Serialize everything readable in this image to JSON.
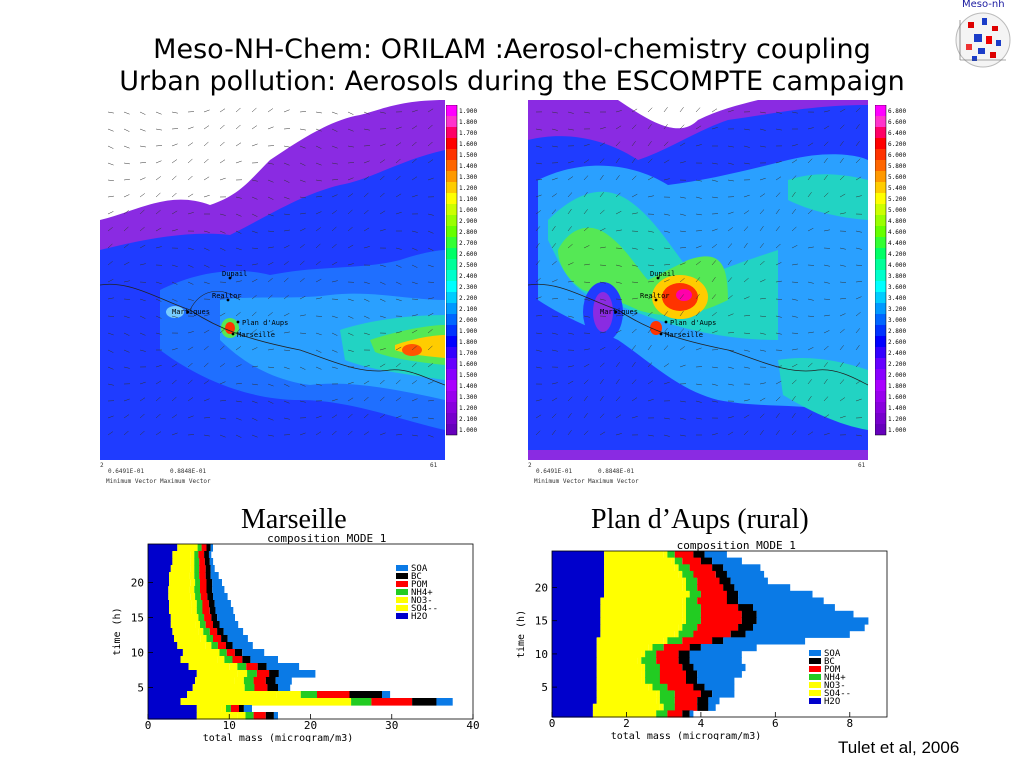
{
  "slide": {
    "title_line1": "Meso-NH-Chem: ORILAM :Aerosol-chemistry coupling",
    "title_line2": "Urban pollution: Aerosols during the ESCOMPTE campaign",
    "logo_text": "Meso-nh",
    "credit": "Tulet et al, 2006"
  },
  "maps": [
    {
      "colorbar_labels": [
        "1.900",
        "1.800",
        "1.700",
        "1.600",
        "1.500",
        "1.400",
        "1.300",
        "1.200",
        "1.100",
        "1.000",
        "2.900",
        "2.800",
        "2.700",
        "2.600",
        "2.500",
        "2.400",
        "2.300",
        "2.200",
        "2.100",
        "2.000",
        "1.900",
        "1.800",
        "1.700",
        "1.600",
        "1.500",
        "1.400",
        "1.300",
        "1.200",
        "2.100",
        "1.000"
      ],
      "places": [
        "Dupail",
        "Realtor",
        "Martigues",
        "Plan d'Aups",
        "Marseille"
      ],
      "footer_left_val": "0.6491E-01",
      "footer_right_val": "0.8848E-01",
      "footer_left_label": "Minimum Vector",
      "footer_right_label": "Maximum Vector",
      "corner_left": "2",
      "corner_right": "61"
    },
    {
      "colorbar_labels": [
        "6.800",
        "6.600",
        "6.400",
        "6.200",
        "6.000",
        "5.800",
        "5.600",
        "5.400",
        "5.200",
        "5.000",
        "4.800",
        "4.600",
        "4.400",
        "4.200",
        "4.000",
        "3.800",
        "3.600",
        "3.400",
        "3.200",
        "3.000",
        "2.800",
        "2.600",
        "2.400",
        "2.200",
        "2.000",
        "1.800",
        "1.600",
        "1.400",
        "1.200",
        "1.000"
      ],
      "places": [
        "Dupail",
        "Realtor",
        "Martigues",
        "Plan d'Aups",
        "Marseille"
      ],
      "footer_left_val": "0.6491E-01",
      "footer_right_val": "0.8848E-01",
      "footer_left_label": "Minimum Vector",
      "footer_right_label": "Maximum Vector",
      "corner_left": "2",
      "corner_right": "61"
    }
  ],
  "colorbar_colors": [
    "#ff00ff",
    "#ff33cc",
    "#ff0066",
    "#ff0000",
    "#ff3300",
    "#ff6600",
    "#ff9900",
    "#ffcc00",
    "#ffff00",
    "#ccff00",
    "#99ff00",
    "#66ff00",
    "#33ff33",
    "#00ff66",
    "#00ff99",
    "#00ffcc",
    "#00ffff",
    "#00ccff",
    "#0099ff",
    "#0066ff",
    "#0033ff",
    "#0000ff",
    "#3300ff",
    "#6600ff",
    "#8800ff",
    "#aa00ff",
    "#9900ee",
    "#8800dd",
    "#7700cc",
    "#6600bb"
  ],
  "chart_data": [
    {
      "type": "bar",
      "orientation": "horizontal-stacked",
      "subtitle": "Marseille",
      "title": "composition MODE 1",
      "xlabel": "total mass (microgram/m3)",
      "ylabel": "time (h)",
      "xlim": [
        0,
        40
      ],
      "ylim": [
        1,
        25
      ],
      "xticks": [
        "0",
        "10",
        "20",
        "30",
        "40"
      ],
      "yticks": [
        "5",
        "10",
        "15",
        "20"
      ],
      "legend_position": "top-right",
      "colors": {
        "SOA": "#0a7ae6",
        "BC": "#000000",
        "POM": "#ff0000",
        "NH4+": "#22cc22",
        "NO3-": "#ffff00",
        "SO4--": "#ffff00",
        "H2O": "#0000cc"
      },
      "series_order": [
        "H2O",
        "SO4--",
        "NO3-",
        "NH4+",
        "POM",
        "BC",
        "SOA"
      ],
      "y": [
        25,
        24,
        23,
        22,
        21,
        20,
        19,
        18,
        17,
        16,
        15,
        14,
        13,
        12,
        11,
        10,
        9,
        8,
        7,
        6,
        5,
        4,
        3,
        2,
        1
      ],
      "series": [
        {
          "name": "H2O",
          "values": [
            3.6,
            3.0,
            3.0,
            2.8,
            2.6,
            2.6,
            2.5,
            2.5,
            2.6,
            2.6,
            2.8,
            2.8,
            3.0,
            3.2,
            3.6,
            4.3,
            4.0,
            5.0,
            6.0,
            5.8,
            5.5,
            4.8,
            4.0,
            6.0,
            6.0
          ]
        },
        {
          "name": "SO4--",
          "values": [
            2.0,
            2.2,
            2.2,
            2.4,
            2.5,
            2.6,
            2.6,
            2.7,
            2.8,
            2.8,
            2.8,
            3.0,
            3.2,
            3.3,
            3.5,
            3.7,
            4.5,
            5.0,
            5.0,
            4.8,
            5.2,
            11.0,
            16.0,
            3.0,
            5.0
          ]
        },
        {
          "name": "NO3-",
          "values": [
            0.5,
            0.5,
            0.5,
            0.5,
            0.6,
            0.6,
            0.6,
            0.6,
            0.6,
            0.6,
            0.6,
            0.6,
            0.6,
            0.7,
            0.7,
            0.8,
            0.9,
            1.0,
            1.2,
            1.2,
            1.2,
            3.0,
            5.0,
            0.6,
            1.0
          ]
        },
        {
          "name": "NH4+",
          "values": [
            0.5,
            0.5,
            0.6,
            0.6,
            0.6,
            0.6,
            0.7,
            0.7,
            0.7,
            0.7,
            0.7,
            0.7,
            0.8,
            0.8,
            0.8,
            0.9,
            1.0,
            1.1,
            1.2,
            1.2,
            1.2,
            2.0,
            2.5,
            0.6,
            1.0
          ]
        },
        {
          "name": "POM",
          "values": [
            0.6,
            0.7,
            0.7,
            0.8,
            0.8,
            0.8,
            0.8,
            0.8,
            0.8,
            0.9,
            0.9,
            0.9,
            0.9,
            1.0,
            1.0,
            1.0,
            1.2,
            1.4,
            1.5,
            1.5,
            1.6,
            4.0,
            5.0,
            1.0,
            1.5
          ]
        },
        {
          "name": "BC",
          "values": [
            0.5,
            0.6,
            0.6,
            0.6,
            0.6,
            0.7,
            0.7,
            0.7,
            0.7,
            0.7,
            0.7,
            0.8,
            0.8,
            0.8,
            0.8,
            0.9,
            1.0,
            1.1,
            1.2,
            1.2,
            1.3,
            4.0,
            3.0,
            0.6,
            1.0
          ]
        },
        {
          "name": "SOA",
          "values": [
            0.3,
            0.3,
            0.4,
            0.5,
            1.0,
            1.2,
            1.5,
            1.8,
            2.0,
            2.2,
            2.2,
            2.3,
            2.4,
            2.5,
            2.5,
            2.7,
            3.4,
            4.0,
            4.5,
            2.0,
            1.5,
            1.0,
            2.0,
            1.0,
            0.5
          ]
        }
      ]
    },
    {
      "type": "bar",
      "orientation": "horizontal-stacked",
      "subtitle": "Plan d’Aups (rural)",
      "title": "composition MODE 1",
      "xlabel": "total mass (microgram/m3)",
      "ylabel": "time (h)",
      "xlim": [
        0,
        9
      ],
      "ylim": [
        1,
        25
      ],
      "xticks": [
        "0",
        "2",
        "4",
        "6",
        "8"
      ],
      "yticks": [
        "5",
        "10",
        "15",
        "20"
      ],
      "legend_position": "bottom-right",
      "colors": {
        "SOA": "#0a7ae6",
        "BC": "#000000",
        "POM": "#ff0000",
        "NH4+": "#22cc22",
        "NO3-": "#ffff00",
        "SO4--": "#ffff00",
        "H2O": "#0000cc"
      },
      "series_order": [
        "H2O",
        "SO4--",
        "NO3-",
        "NH4+",
        "POM",
        "BC",
        "SOA"
      ],
      "y": [
        25,
        24,
        23,
        22,
        21,
        20,
        19,
        18,
        17,
        16,
        15,
        14,
        13,
        12,
        11,
        10,
        9,
        8,
        7,
        6,
        5,
        4,
        3,
        2,
        1
      ],
      "series": [
        {
          "name": "H2O",
          "values": [
            1.4,
            1.4,
            1.4,
            1.4,
            1.4,
            1.4,
            1.4,
            1.3,
            1.3,
            1.3,
            1.3,
            1.3,
            1.3,
            1.2,
            1.2,
            1.2,
            1.2,
            1.2,
            1.2,
            1.2,
            1.2,
            1.2,
            1.2,
            1.1,
            1.1
          ]
        },
        {
          "name": "SO4--",
          "values": [
            1.6,
            1.8,
            1.9,
            2.0,
            2.1,
            2.1,
            2.2,
            2.2,
            2.2,
            2.2,
            2.2,
            2.1,
            2.0,
            1.8,
            1.4,
            1.2,
            1.1,
            1.2,
            1.2,
            1.2,
            1.4,
            1.6,
            1.6,
            1.8,
            1.6
          ]
        },
        {
          "name": "NO3-",
          "values": [
            0.1,
            0.1,
            0.1,
            0.1,
            0.1,
            0.1,
            0.1,
            0.1,
            0.1,
            0.1,
            0.1,
            0.1,
            0.1,
            0.1,
            0.1,
            0.1,
            0.1,
            0.1,
            0.1,
            0.1,
            0.1,
            0.1,
            0.1,
            0.1,
            0.1
          ]
        },
        {
          "name": "NH4+",
          "values": [
            0.2,
            0.2,
            0.3,
            0.3,
            0.3,
            0.3,
            0.3,
            0.3,
            0.4,
            0.4,
            0.4,
            0.4,
            0.4,
            0.4,
            0.3,
            0.3,
            0.4,
            0.4,
            0.4,
            0.4,
            0.4,
            0.4,
            0.4,
            0.3,
            0.3
          ]
        },
        {
          "name": "POM",
          "values": [
            0.5,
            0.5,
            0.6,
            0.6,
            0.6,
            0.7,
            0.7,
            0.8,
            1.0,
            1.1,
            1.1,
            1.1,
            1.0,
            0.8,
            0.7,
            0.6,
            0.6,
            0.6,
            0.7,
            0.7,
            0.7,
            0.7,
            0.6,
            0.6,
            0.4
          ]
        },
        {
          "name": "BC",
          "values": [
            0.3,
            0.3,
            0.3,
            0.3,
            0.3,
            0.3,
            0.3,
            0.3,
            0.4,
            0.4,
            0.4,
            0.4,
            0.4,
            0.3,
            0.3,
            0.3,
            0.3,
            0.3,
            0.3,
            0.3,
            0.3,
            0.3,
            0.3,
            0.3,
            0.2
          ]
        },
        {
          "name": "SOA",
          "values": [
            0.6,
            0.8,
            1.0,
            1.0,
            1.0,
            1.5,
            2.0,
            2.3,
            2.2,
            2.6,
            3.0,
            3.0,
            2.8,
            2.2,
            1.5,
            1.4,
            1.4,
            1.4,
            1.2,
            1.0,
            0.8,
            0.6,
            0.3,
            0.2,
            0.1
          ]
        }
      ]
    }
  ]
}
